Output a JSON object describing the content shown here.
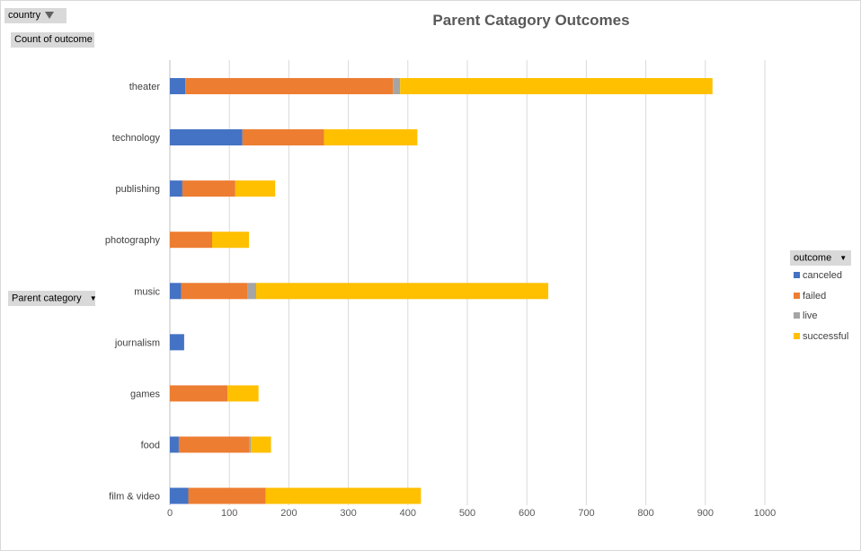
{
  "filters": {
    "report_filter_label": "country",
    "values_label": "Count of outcome",
    "axis_field_label": "Parent category",
    "legend_field_label": "outcome"
  },
  "chart_data": {
    "type": "bar",
    "orientation": "horizontal",
    "stacked": true,
    "title": "Parent Catagory Outcomes",
    "xlabel": "",
    "ylabel": "",
    "categories": [
      "film & video",
      "food",
      "games",
      "journalism",
      "music",
      "photography",
      "publishing",
      "technology",
      "theater"
    ],
    "series": [
      {
        "name": "canceled",
        "color": "#4472c4",
        "values": [
          31,
          15,
          0,
          24,
          19,
          0,
          21,
          122,
          26
        ]
      },
      {
        "name": "failed",
        "color": "#ed7d31",
        "values": [
          130,
          118,
          97,
          0,
          111,
          71,
          89,
          137,
          349
        ]
      },
      {
        "name": "live",
        "color": "#a5a5a5",
        "values": [
          0,
          3,
          0,
          0,
          15,
          0,
          0,
          0,
          12
        ]
      },
      {
        "name": "successful",
        "color": "#ffc000",
        "values": [
          261,
          34,
          52,
          0,
          491,
          62,
          67,
          157,
          525
        ]
      }
    ],
    "xlim": [
      0,
      1000
    ],
    "xticks": [
      "0",
      "100",
      "200",
      "300",
      "400",
      "500",
      "600",
      "700",
      "800",
      "900",
      "1000"
    ],
    "grid": true,
    "legend_position": "right"
  }
}
